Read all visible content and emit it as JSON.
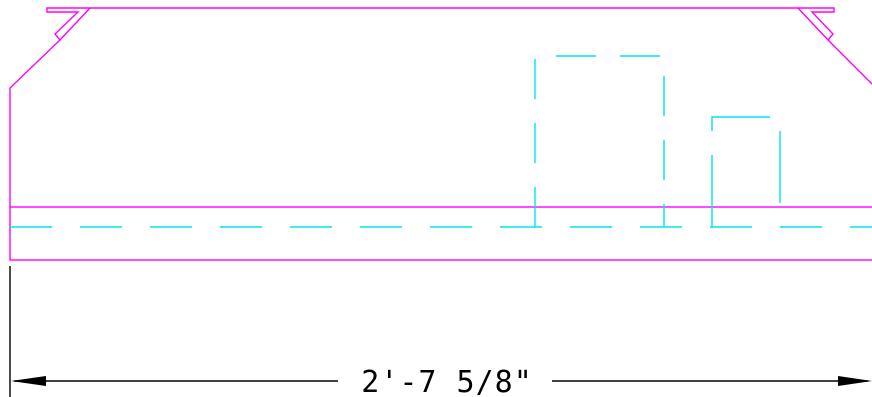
{
  "colors": {
    "outline": "#ff00ff",
    "hidden": "#00e5e5",
    "dimension": "#000000",
    "background": "#ffffff"
  },
  "dimension": {
    "label": "2'-7 5/8\""
  }
}
